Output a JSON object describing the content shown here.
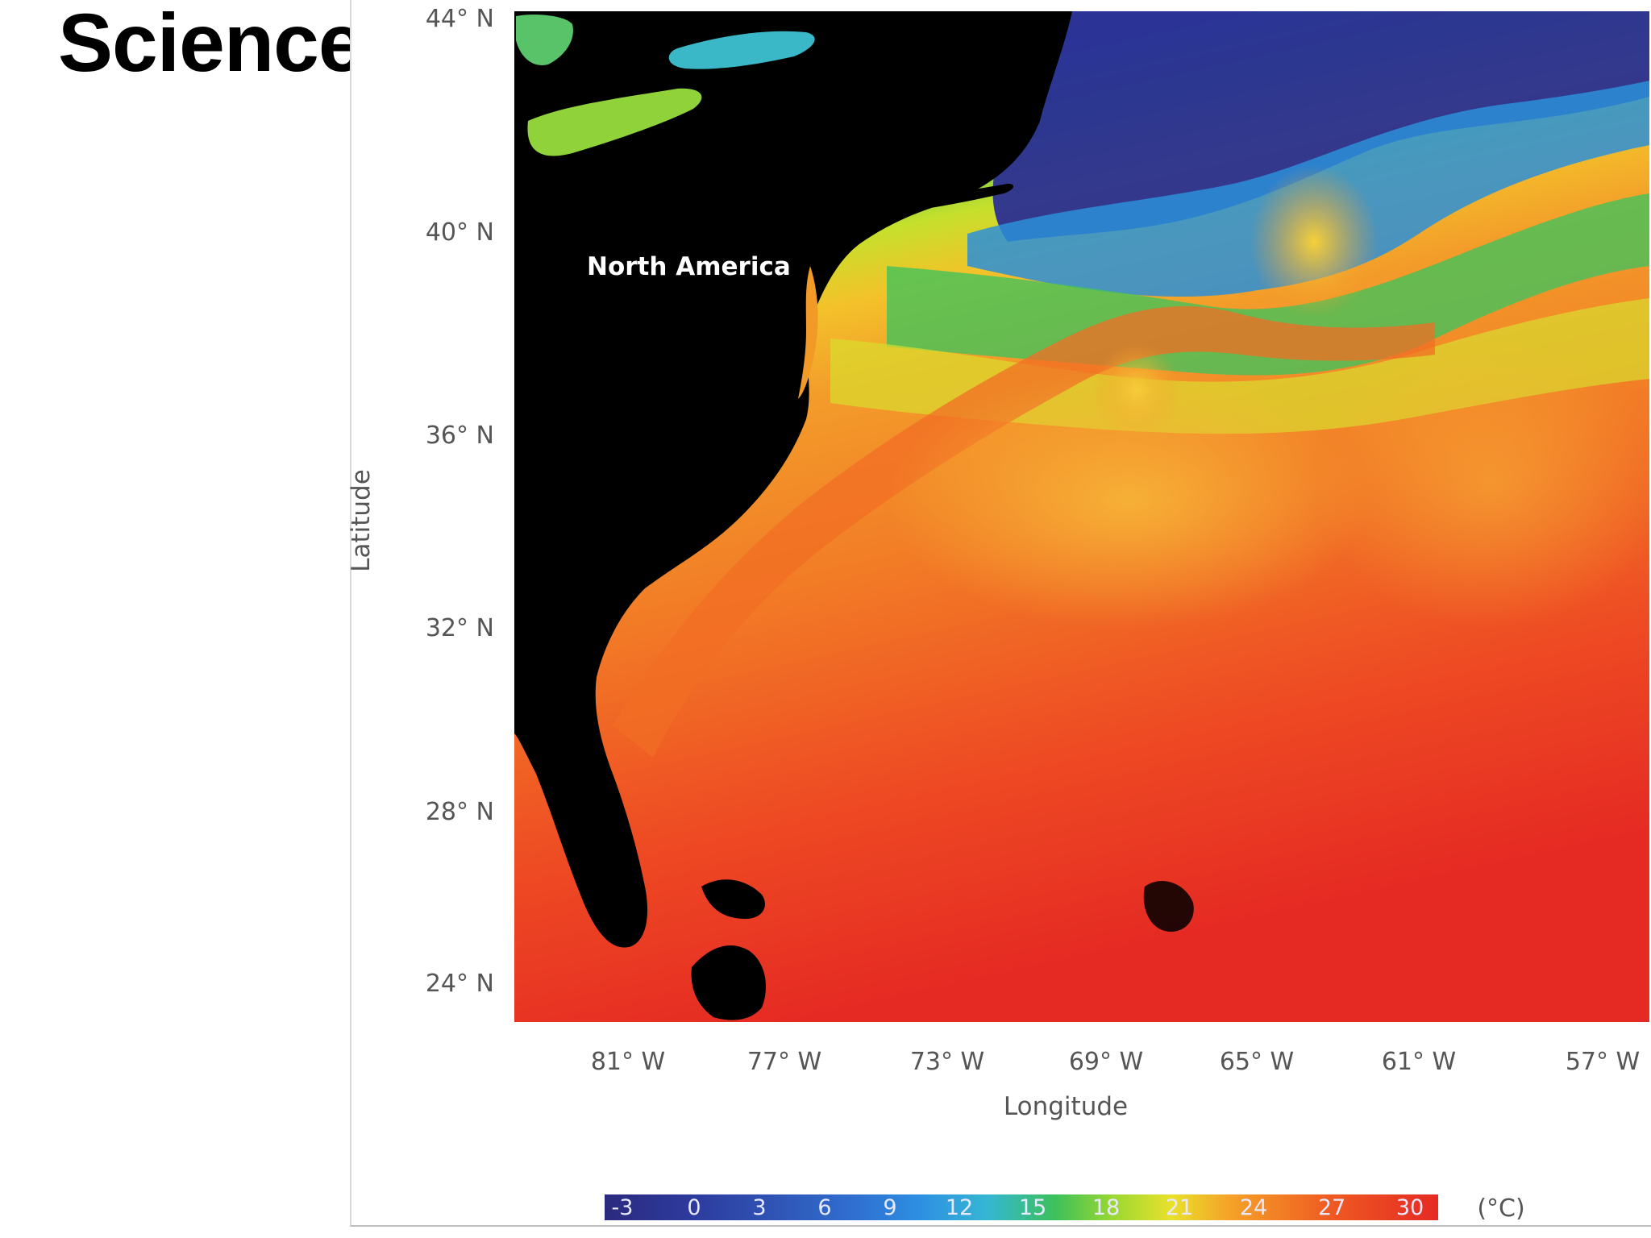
{
  "slide": {
    "title": "Science"
  },
  "map": {
    "region_label": "North America",
    "latitude_ticks": [
      "44° N",
      "40° N",
      "36° N",
      "32° N",
      "28° N",
      "24° N"
    ],
    "longitude_ticks": [
      "81° W",
      "77° W",
      "73° W",
      "69° W",
      "65° W",
      "61° W",
      "57° W"
    ],
    "ylabel": "Latitude",
    "xlabel": "Longitude",
    "land_color": "#000000",
    "colorbar": {
      "ticks": [
        "-3",
        "0",
        "3",
        "6",
        "9",
        "12",
        "15",
        "18",
        "21",
        "24",
        "27",
        "30"
      ],
      "unit": "(°C)",
      "colors": [
        "#2b2a7e",
        "#2d3a9c",
        "#2f53b4",
        "#2f6fd0",
        "#2e90e2",
        "#35b7d3",
        "#3cc05a",
        "#9bd832",
        "#e9e12c",
        "#f5a228",
        "#ef5a22",
        "#e52a23"
      ]
    }
  }
}
